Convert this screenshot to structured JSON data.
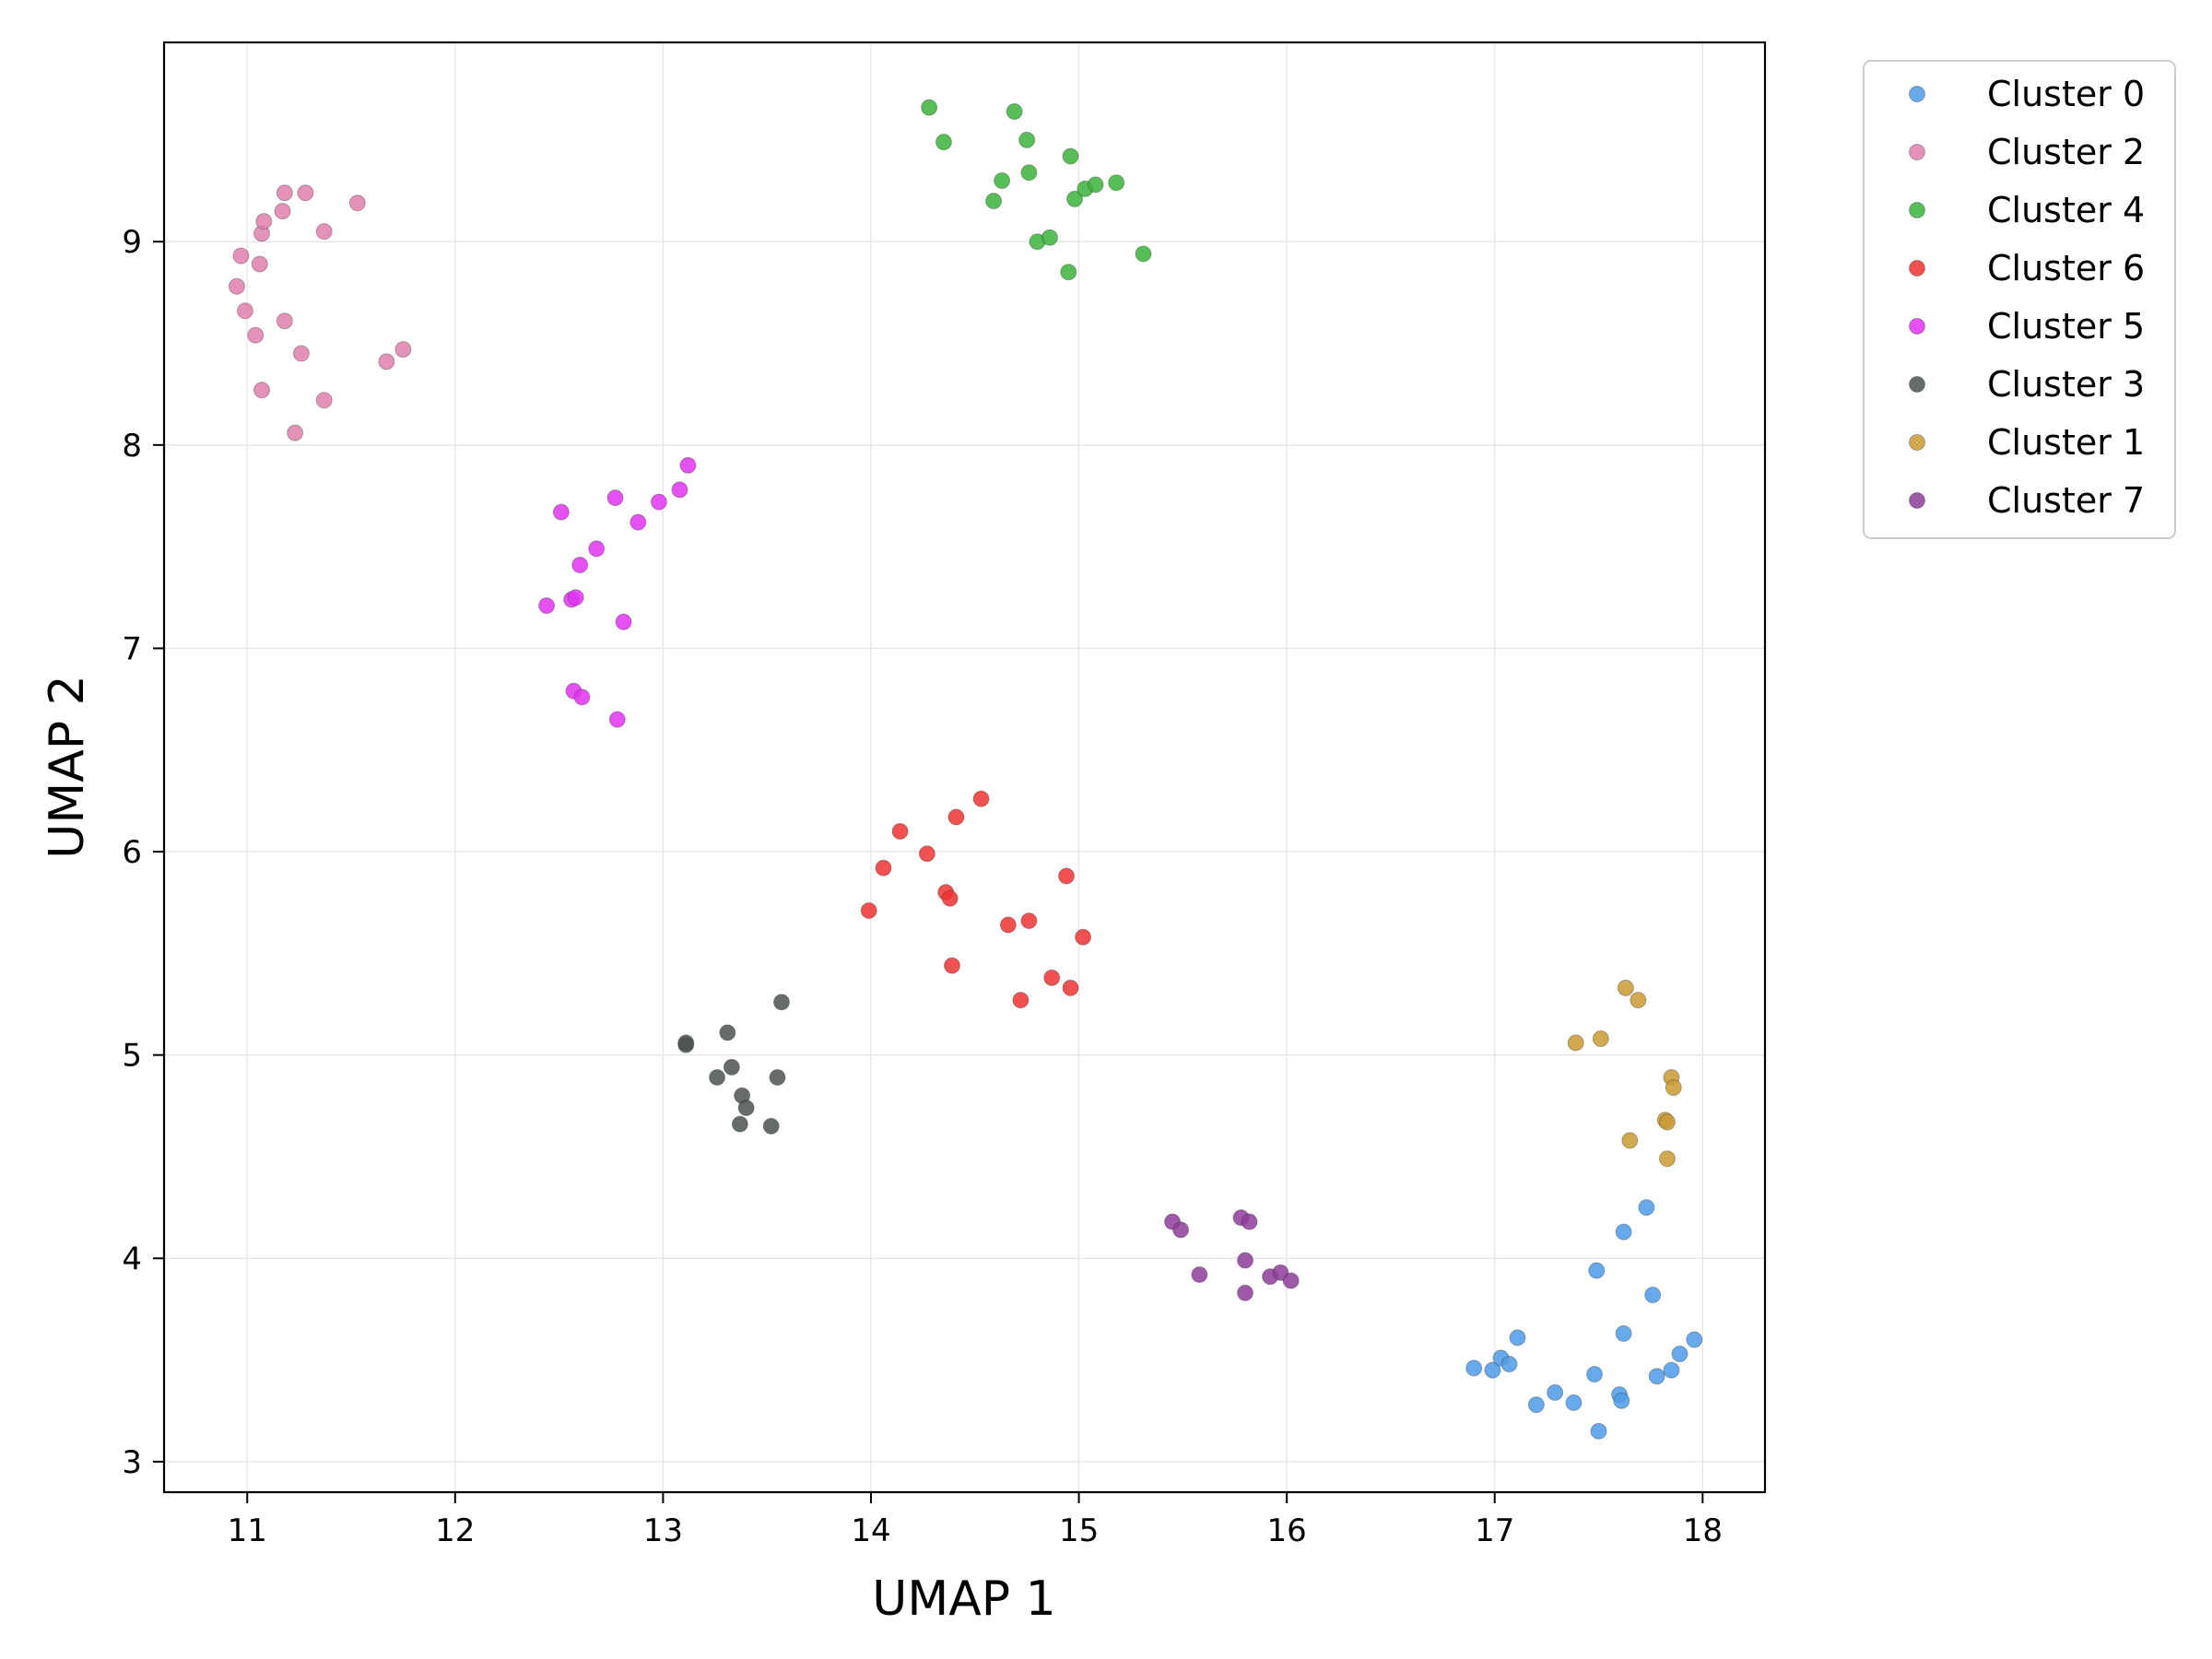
{
  "chart_data": {
    "type": "scatter",
    "title": "",
    "xlabel": "UMAP 1",
    "ylabel": "UMAP 2",
    "xlim": [
      10.6,
      18.3
    ],
    "ylim": [
      2.85,
      9.98
    ],
    "xticks": [
      11,
      12,
      13,
      14,
      15,
      16,
      17,
      18
    ],
    "yticks": [
      3,
      4,
      5,
      6,
      7,
      8,
      9
    ],
    "grid": true,
    "legend_position": "outside-top-right",
    "series": [
      {
        "name": "Cluster 0",
        "color": "#4c9be8",
        "points": [
          [
            16.9,
            3.46
          ],
          [
            16.99,
            3.45
          ],
          [
            17.03,
            3.51
          ],
          [
            17.07,
            3.48
          ],
          [
            17.11,
            3.61
          ],
          [
            17.2,
            3.28
          ],
          [
            17.29,
            3.34
          ],
          [
            17.38,
            3.29
          ],
          [
            17.48,
            3.43
          ],
          [
            17.5,
            3.15
          ],
          [
            17.6,
            3.33
          ],
          [
            17.61,
            3.3
          ],
          [
            17.62,
            3.63
          ],
          [
            17.49,
            3.94
          ],
          [
            17.62,
            4.13
          ],
          [
            17.73,
            4.25
          ],
          [
            17.76,
            3.82
          ],
          [
            17.78,
            3.42
          ],
          [
            17.85,
            3.45
          ],
          [
            17.89,
            3.53
          ],
          [
            17.96,
            3.6
          ]
        ]
      },
      {
        "name": "Cluster 2",
        "color": "#e07fab",
        "points": [
          [
            10.95,
            8.78
          ],
          [
            10.97,
            8.93
          ],
          [
            10.99,
            8.66
          ],
          [
            11.04,
            8.54
          ],
          [
            11.06,
            8.89
          ],
          [
            11.07,
            9.04
          ],
          [
            11.08,
            9.1
          ],
          [
            11.07,
            8.27
          ],
          [
            11.17,
            9.15
          ],
          [
            11.18,
            9.24
          ],
          [
            11.18,
            8.61
          ],
          [
            11.23,
            8.06
          ],
          [
            11.26,
            8.45
          ],
          [
            11.28,
            9.24
          ],
          [
            11.37,
            9.05
          ],
          [
            11.37,
            8.22
          ],
          [
            11.53,
            9.19
          ],
          [
            11.67,
            8.41
          ],
          [
            11.75,
            8.47
          ]
        ]
      },
      {
        "name": "Cluster 4",
        "color": "#3bb33b",
        "points": [
          [
            14.28,
            9.66
          ],
          [
            14.35,
            9.49
          ],
          [
            14.59,
            9.2
          ],
          [
            14.63,
            9.3
          ],
          [
            14.69,
            9.64
          ],
          [
            14.75,
            9.5
          ],
          [
            14.76,
            9.34
          ],
          [
            14.8,
            9.0
          ],
          [
            14.86,
            9.02
          ],
          [
            14.95,
            8.85
          ],
          [
            14.96,
            9.42
          ],
          [
            14.98,
            9.21
          ],
          [
            15.03,
            9.26
          ],
          [
            15.08,
            9.28
          ],
          [
            15.18,
            9.29
          ],
          [
            15.31,
            8.94
          ]
        ]
      },
      {
        "name": "Cluster 6",
        "color": "#ee3333",
        "points": [
          [
            13.99,
            5.71
          ],
          [
            14.06,
            5.92
          ],
          [
            14.14,
            6.1
          ],
          [
            14.27,
            5.99
          ],
          [
            14.36,
            5.8
          ],
          [
            14.38,
            5.77
          ],
          [
            14.39,
            5.44
          ],
          [
            14.41,
            6.17
          ],
          [
            14.53,
            6.26
          ],
          [
            14.66,
            5.64
          ],
          [
            14.72,
            5.27
          ],
          [
            14.76,
            5.66
          ],
          [
            14.87,
            5.38
          ],
          [
            14.94,
            5.88
          ],
          [
            14.96,
            5.33
          ],
          [
            15.02,
            5.58
          ]
        ]
      },
      {
        "name": "Cluster 5",
        "color": "#e033f0",
        "points": [
          [
            12.44,
            7.21
          ],
          [
            12.51,
            7.67
          ],
          [
            12.56,
            7.24
          ],
          [
            12.57,
            6.79
          ],
          [
            12.58,
            7.25
          ],
          [
            12.6,
            7.41
          ],
          [
            12.61,
            6.76
          ],
          [
            12.68,
            7.49
          ],
          [
            12.77,
            7.74
          ],
          [
            12.78,
            6.65
          ],
          [
            12.81,
            7.13
          ],
          [
            12.88,
            7.62
          ],
          [
            12.98,
            7.72
          ],
          [
            13.08,
            7.78
          ],
          [
            13.12,
            7.9
          ]
        ]
      },
      {
        "name": "Cluster 3",
        "color": "#4b524d",
        "points": [
          [
            13.11,
            5.05
          ],
          [
            13.11,
            5.06
          ],
          [
            13.26,
            4.89
          ],
          [
            13.31,
            5.11
          ],
          [
            13.33,
            4.94
          ],
          [
            13.37,
            4.66
          ],
          [
            13.38,
            4.8
          ],
          [
            13.4,
            4.74
          ],
          [
            13.52,
            4.65
          ],
          [
            13.55,
            4.89
          ],
          [
            13.57,
            5.26
          ]
        ]
      },
      {
        "name": "Cluster 1",
        "color": "#c99a33",
        "points": [
          [
            17.39,
            5.06
          ],
          [
            17.51,
            5.08
          ],
          [
            17.63,
            5.33
          ],
          [
            17.65,
            4.58
          ],
          [
            17.69,
            5.27
          ],
          [
            17.82,
            4.68
          ],
          [
            17.83,
            4.67
          ],
          [
            17.83,
            4.49
          ],
          [
            17.85,
            4.89
          ],
          [
            17.86,
            4.84
          ]
        ]
      },
      {
        "name": "Cluster 7",
        "color": "#8e3c9a",
        "points": [
          [
            15.45,
            4.18
          ],
          [
            15.49,
            4.14
          ],
          [
            15.58,
            3.92
          ],
          [
            15.78,
            4.2
          ],
          [
            15.8,
            3.83
          ],
          [
            15.8,
            3.99
          ],
          [
            15.82,
            4.18
          ],
          [
            15.92,
            3.91
          ],
          [
            15.97,
            3.93
          ],
          [
            16.02,
            3.89
          ]
        ]
      }
    ]
  }
}
